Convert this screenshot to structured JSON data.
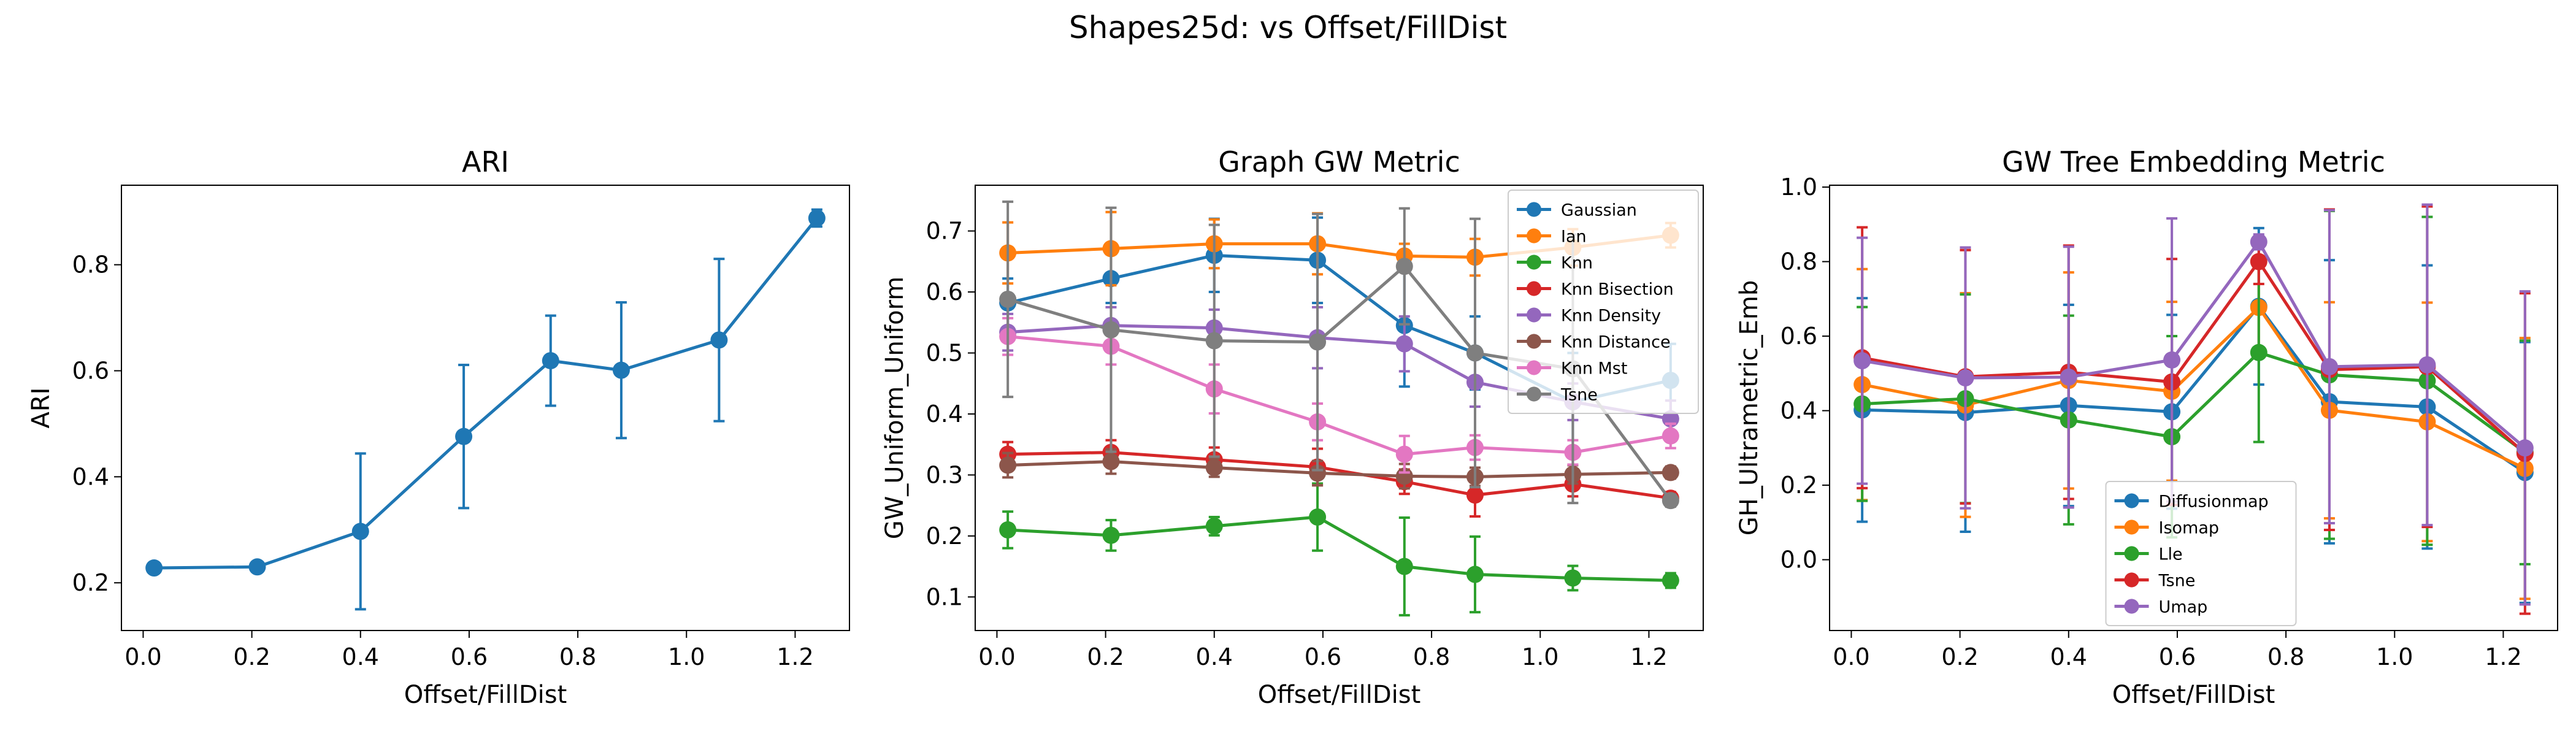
{
  "title": "Shapes25d: vs Offset/FillDist",
  "chart_data": [
    {
      "type": "line",
      "title": "ARI",
      "xlabel": "Offset/FillDist",
      "ylabel": "ARI",
      "xlim": [
        -0.04,
        1.3
      ],
      "ylim": [
        0.11,
        0.95
      ],
      "xticks": [
        0.0,
        0.2,
        0.4,
        0.6,
        0.8,
        1.0,
        1.2
      ],
      "yticks": [
        0.2,
        0.4,
        0.6,
        0.8
      ],
      "x": [
        0.02,
        0.21,
        0.4,
        0.59,
        0.75,
        0.88,
        1.06,
        1.24
      ],
      "series": [
        {
          "color": "#1f77b4",
          "values": [
            0.228,
            0.23,
            0.297,
            0.476,
            0.619,
            0.601,
            0.658,
            0.888
          ],
          "errors": [
            0.005,
            0.005,
            0.147,
            0.135,
            0.085,
            0.128,
            0.153,
            0.016
          ]
        }
      ]
    },
    {
      "type": "line",
      "title": "Graph GW Metric",
      "xlabel": "Offset/FillDist",
      "ylabel": "GW_Uniform_Uniform",
      "xlim": [
        -0.04,
        1.3
      ],
      "ylim": [
        0.045,
        0.775
      ],
      "xticks": [
        0.0,
        0.2,
        0.4,
        0.6,
        0.8,
        1.0,
        1.2
      ],
      "yticks": [
        0.1,
        0.2,
        0.3,
        0.4,
        0.5,
        0.6,
        0.7
      ],
      "legend": "top-right",
      "x": [
        0.02,
        0.21,
        0.4,
        0.59,
        0.75,
        0.88,
        1.06,
        1.24
      ],
      "series": [
        {
          "name": "Gaussian",
          "color": "#1f77b4",
          "values": [
            0.582,
            0.622,
            0.66,
            0.652,
            0.545,
            0.5,
            0.42,
            0.455
          ],
          "errors": [
            0.04,
            0.04,
            0.06,
            0.07,
            0.1,
            0.06,
            0.08,
            0.06
          ]
        },
        {
          "name": "Ian",
          "color": "#ff7f0e",
          "values": [
            0.664,
            0.671,
            0.679,
            0.679,
            0.659,
            0.657,
            0.673,
            0.693
          ],
          "errors": [
            0.05,
            0.06,
            0.04,
            0.05,
            0.02,
            0.03,
            0.03,
            0.02
          ]
        },
        {
          "name": "Knn",
          "color": "#2ca02c",
          "values": [
            0.21,
            0.201,
            0.216,
            0.231,
            0.15,
            0.137,
            0.131,
            0.127
          ],
          "errors": [
            0.03,
            0.025,
            0.015,
            0.055,
            0.08,
            0.062,
            0.02,
            0.012
          ]
        },
        {
          "name": "Knn Bisection",
          "color": "#d62728",
          "values": [
            0.334,
            0.337,
            0.325,
            0.313,
            0.289,
            0.267,
            0.285,
            0.262
          ],
          "errors": [
            0.02,
            0.02,
            0.02,
            0.03,
            0.02,
            0.035,
            0.02,
            0.01
          ]
        },
        {
          "name": "Knn Density",
          "color": "#9467bd",
          "values": [
            0.534,
            0.545,
            0.541,
            0.525,
            0.515,
            0.452,
            0.42,
            0.392
          ],
          "errors": [
            0.03,
            0.03,
            0.03,
            0.05,
            0.045,
            0.04,
            0.03,
            0.03
          ]
        },
        {
          "name": "Knn Distance",
          "color": "#8c564b",
          "values": [
            0.316,
            0.322,
            0.312,
            0.303,
            0.298,
            0.297,
            0.301,
            0.304
          ],
          "errors": [
            0.02,
            0.02,
            0.015,
            0.02,
            0.02,
            0.015,
            0.015,
            0.01
          ]
        },
        {
          "name": "Knn Mst",
          "color": "#e377c2",
          "values": [
            0.527,
            0.511,
            0.441,
            0.387,
            0.334,
            0.345,
            0.337,
            0.364
          ],
          "errors": [
            0.03,
            0.03,
            0.04,
            0.03,
            0.03,
            0.02,
            0.02,
            0.02
          ]
        },
        {
          "name": "Tsne",
          "color": "#7f7f7f",
          "values": [
            0.588,
            0.538,
            0.52,
            0.518,
            0.642,
            0.5,
            0.474,
            0.258
          ],
          "errors": [
            0.16,
            0.2,
            0.19,
            0.21,
            0.095,
            0.22,
            0.22,
            0.01
          ]
        }
      ]
    },
    {
      "type": "line",
      "title": "GW Tree Embedding Metric",
      "xlabel": "Offset/FillDist",
      "ylabel": "GH_Ultrametric_Emb",
      "xlim": [
        -0.04,
        1.3
      ],
      "ylim": [
        -0.19,
        1.005
      ],
      "xticks": [
        0.0,
        0.2,
        0.4,
        0.6,
        0.8,
        1.0,
        1.2
      ],
      "yticks": [
        0.0,
        0.2,
        0.4,
        0.6,
        0.8,
        1.0
      ],
      "legend": "bottom-center",
      "x": [
        0.02,
        0.21,
        0.4,
        0.59,
        0.75,
        0.88,
        1.06,
        1.24
      ],
      "series": [
        {
          "name": "Diffusionmap",
          "color": "#1f77b4",
          "values": [
            0.402,
            0.395,
            0.414,
            0.397,
            0.68,
            0.424,
            0.41,
            0.234
          ],
          "errors": [
            0.3,
            0.32,
            0.27,
            0.26,
            0.21,
            0.38,
            0.38,
            0.35
          ]
        },
        {
          "name": "Isomap",
          "color": "#ff7f0e",
          "values": [
            0.47,
            0.415,
            0.481,
            0.452,
            0.677,
            0.401,
            0.37,
            0.245
          ],
          "errors": [
            0.31,
            0.3,
            0.29,
            0.24,
            0.12,
            0.29,
            0.32,
            0.35
          ]
        },
        {
          "name": "Lle",
          "color": "#2ca02c",
          "values": [
            0.418,
            0.432,
            0.375,
            0.33,
            0.556,
            0.496,
            0.48,
            0.288
          ],
          "errors": [
            0.26,
            0.28,
            0.28,
            0.27,
            0.24,
            0.44,
            0.44,
            0.3
          ]
        },
        {
          "name": "Tsne",
          "color": "#d62728",
          "values": [
            0.542,
            0.491,
            0.503,
            0.477,
            0.8,
            0.51,
            0.518,
            0.285
          ],
          "errors": [
            0.35,
            0.34,
            0.34,
            0.33,
            0.06,
            0.43,
            0.43,
            0.43
          ]
        },
        {
          "name": "Umap",
          "color": "#9467bd",
          "values": [
            0.534,
            0.488,
            0.49,
            0.536,
            0.853,
            0.518,
            0.523,
            0.3
          ],
          "errors": [
            0.33,
            0.35,
            0.35,
            0.38,
            0.02,
            0.42,
            0.43,
            0.42
          ]
        }
      ]
    }
  ]
}
